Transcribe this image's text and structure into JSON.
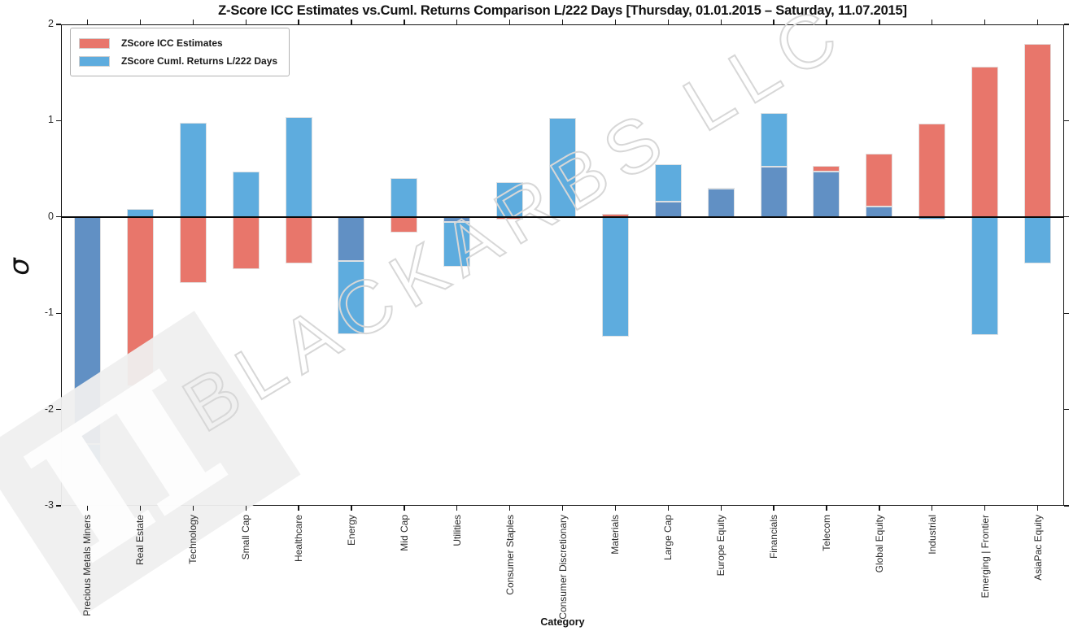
{
  "figure": {
    "title": "Z-Score ICC Estimates vs.Cuml. Returns Comparison L/222 Days [Thursday, 01.01.2015 – Saturday, 11.07.2015]",
    "watermark_text": "BLACKARBS LLC",
    "watermark_logo_glyph": "π"
  },
  "axes": {
    "xlabel": "Category",
    "ylabel": "σ",
    "ytick_labels": [
      "2",
      "1",
      "0",
      "-1",
      "-2",
      "-3"
    ]
  },
  "legend": {
    "items": [
      {
        "label": "ZScore ICC Estimates",
        "color": "#E8766B"
      },
      {
        "label": "ZScore Cuml. Returns L/222 Days",
        "color": "#5EACDE"
      }
    ]
  },
  "chart_data": {
    "type": "bar",
    "title": "Z-Score ICC Estimates vs.Cuml. Returns Comparison L/222 Days [Thursday, 01.01.2015 – Saturday, 11.07.2015]",
    "xlabel": "Category",
    "ylabel": "σ",
    "ylim": [
      -3,
      2
    ],
    "yticks": [
      2,
      1,
      0,
      -1,
      -2,
      -3
    ],
    "grid": false,
    "legend_position": "upper left",
    "categories": [
      "Precious Metals Miners",
      "Real Estate",
      "Technology",
      "Small Cap",
      "Healthcare",
      "Energy",
      "Mid Cap",
      "Utilities",
      "Consumer Staples",
      "Consumer Discretionary",
      "Materials",
      "Large Cap",
      "Europe Equity",
      "Financials",
      "Telecom",
      "Global Equity",
      "Industrial",
      "Emerging | Frontier",
      "AsiaPac Equity"
    ],
    "series": [
      {
        "name": "ZScore ICC Estimates",
        "color": "#E8766B",
        "values": [
          -2.36,
          -1.76,
          -0.69,
          -0.54,
          -0.48,
          -0.46,
          -0.16,
          -0.05,
          -0.03,
          0.0,
          0.03,
          0.16,
          0.29,
          0.52,
          0.53,
          0.66,
          0.97,
          1.56,
          1.8
        ]
      },
      {
        "name": "ZScore Cuml. Returns L/222 Days",
        "color": "#5EACDE",
        "values": [
          -2.93,
          0.08,
          0.98,
          0.47,
          1.04,
          -1.22,
          0.4,
          -0.52,
          0.36,
          1.03,
          -1.24,
          0.55,
          0.3,
          1.08,
          0.47,
          0.11,
          -0.03,
          -1.23,
          -0.48
        ]
      }
    ],
    "overlap_color": "#6190C4",
    "bar_edge_color": "#E4E4E4"
  }
}
